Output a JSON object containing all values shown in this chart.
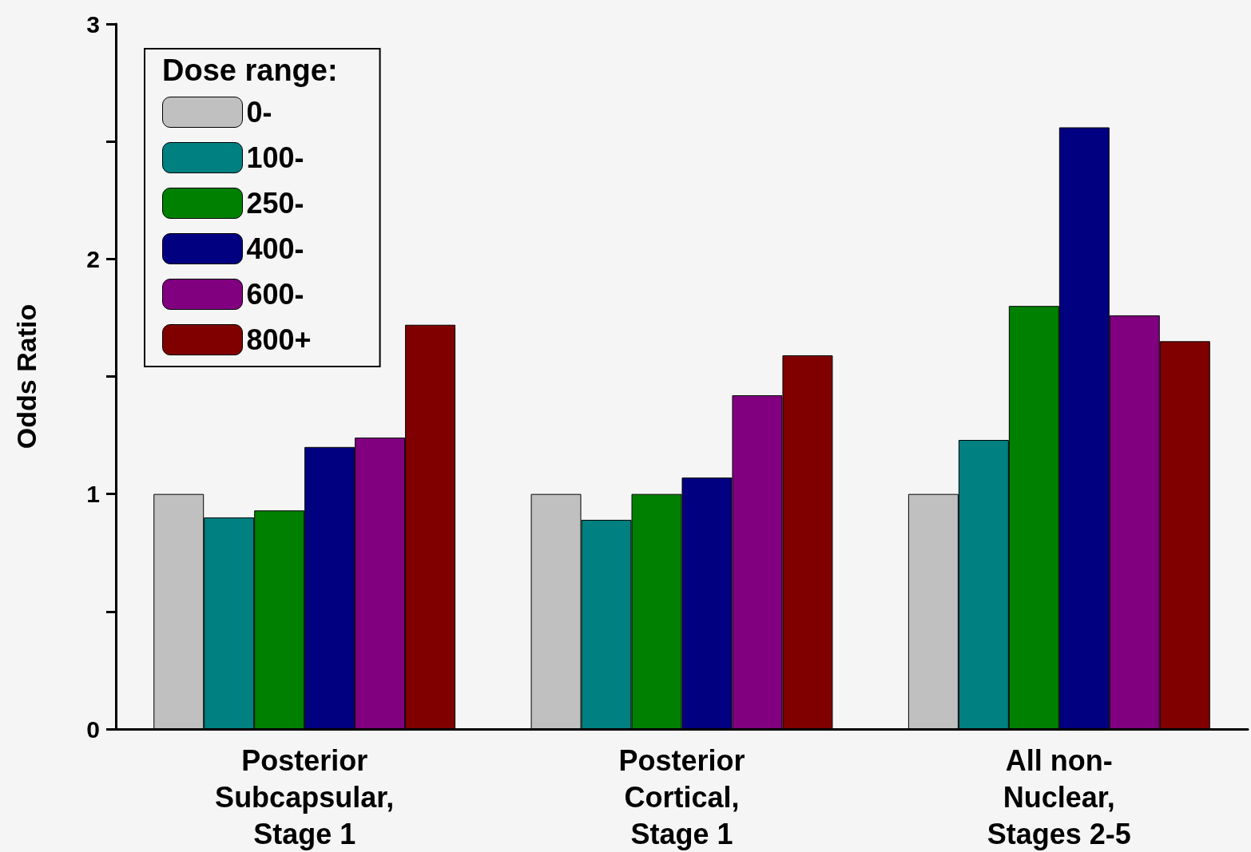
{
  "chart_data": {
    "type": "bar",
    "ylabel": "Odds Ratio",
    "legend_title": "Dose range:",
    "categories": [
      "Posterior\nSubcapsular,\nStage 1",
      "Posterior\nCortical,\nStage 1",
      "All non-\nNuclear,\nStages 2-5"
    ],
    "series": [
      {
        "name": "0-",
        "color": "#c0c0c0",
        "values": [
          1.0,
          1.0,
          1.0
        ]
      },
      {
        "name": "100-",
        "color": "#008080",
        "values": [
          0.9,
          0.89,
          1.23
        ]
      },
      {
        "name": "250-",
        "color": "#008000",
        "values": [
          0.93,
          1.0,
          1.8
        ]
      },
      {
        "name": "400-",
        "color": "#000080",
        "values": [
          1.2,
          1.07,
          2.56
        ]
      },
      {
        "name": "600-",
        "color": "#800080",
        "values": [
          1.24,
          1.42,
          1.76
        ]
      },
      {
        "name": "800+",
        "color": "#800000",
        "values": [
          1.72,
          1.59,
          1.65
        ]
      }
    ],
    "ylim": [
      0,
      3
    ],
    "yticks": [
      0,
      {
        "value": 0.5,
        "label": null
      },
      1,
      {
        "value": 1.5,
        "label": null
      },
      2,
      {
        "value": 2.5,
        "label": null
      },
      3
    ],
    "grid": false,
    "legend": "top left"
  }
}
